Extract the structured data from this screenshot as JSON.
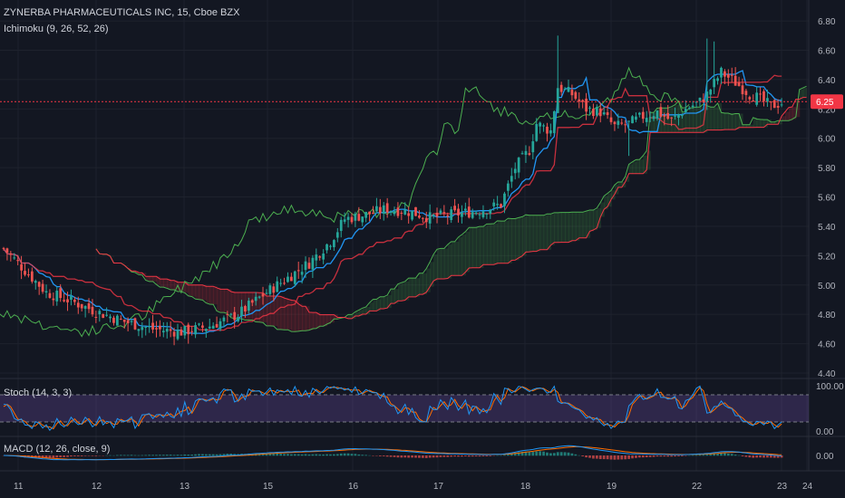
{
  "header": {
    "title": "ZYNERBA PHARMACEUTICALS INC, 15, Cboe BZX",
    "indicator": "Ichimoku (9, 26, 52, 26)"
  },
  "colors": {
    "background": "#131722",
    "grid": "#1e222d",
    "up": "#26a69a",
    "down": "#ef5350",
    "tenkan": "#2196f3",
    "kijun": "#f23645",
    "chikou": "#4caf50",
    "cloud_bull": "#4caf50",
    "cloud_bear": "#f23645",
    "stoch_k": "#2196f3",
    "stoch_d": "#ff6d00",
    "stoch_band": "#7e57c2",
    "macd_line": "#2196f3",
    "signal_line": "#ff6d00",
    "price_marker": "#f23645"
  },
  "price_axis": {
    "labels": [
      "6.80",
      "6.60",
      "6.40",
      "6.20",
      "6.00",
      "5.80",
      "5.60",
      "5.40",
      "5.20",
      "5.00",
      "4.80",
      "4.60",
      "4.40"
    ],
    "last_price": "6.25"
  },
  "time_axis": {
    "labels": [
      "11",
      "12",
      "13",
      "15",
      "16",
      "17",
      "18",
      "19",
      "22",
      "23",
      "24"
    ]
  },
  "stoch": {
    "label": "Stoch (14, 3, 3)",
    "axis": [
      "100.00",
      "0.00"
    ]
  },
  "macd": {
    "label": "MACD (12, 26, close, 9)",
    "axis": [
      "0.00"
    ]
  },
  "chart_data": {
    "type": "candlestick",
    "symbol": "ZYNERBA PHARMACEUTICALS INC",
    "interval": "15",
    "exchange": "Cboe BZX",
    "ylim": [
      4.4,
      6.85
    ],
    "last_price": 6.25,
    "x_labels": [
      "11",
      "12",
      "13",
      "15",
      "16",
      "17",
      "18",
      "19",
      "22",
      "23",
      "24"
    ],
    "close_path": [
      [
        0,
        5.25
      ],
      [
        6,
        5.1
      ],
      [
        12,
        4.95
      ],
      [
        18,
        4.9
      ],
      [
        26,
        4.82
      ],
      [
        34,
        4.75
      ],
      [
        42,
        4.7
      ],
      [
        50,
        4.68
      ],
      [
        58,
        4.72
      ],
      [
        66,
        4.8
      ],
      [
        74,
        4.95
      ],
      [
        80,
        5.05
      ],
      [
        86,
        5.15
      ],
      [
        92,
        5.3
      ],
      [
        96,
        5.45
      ],
      [
        102,
        5.48
      ],
      [
        108,
        5.52
      ],
      [
        114,
        5.5
      ],
      [
        120,
        5.46
      ],
      [
        126,
        5.48
      ],
      [
        132,
        5.5
      ],
      [
        136,
        5.52
      ],
      [
        140,
        5.55
      ],
      [
        144,
        5.8
      ],
      [
        148,
        5.92
      ],
      [
        150,
        6.1
      ],
      [
        154,
        6.05
      ],
      [
        156,
        6.35
      ],
      [
        160,
        6.3
      ],
      [
        164,
        6.2
      ],
      [
        168,
        6.18
      ],
      [
        172,
        6.08
      ],
      [
        176,
        6.1
      ],
      [
        180,
        6.15
      ],
      [
        184,
        6.18
      ],
      [
        188,
        6.12
      ],
      [
        192,
        6.2
      ],
      [
        196,
        6.25
      ],
      [
        198,
        6.3
      ],
      [
        202,
        6.45
      ],
      [
        206,
        6.38
      ],
      [
        210,
        6.3
      ],
      [
        212,
        6.28
      ],
      [
        216,
        6.22
      ],
      [
        220,
        6.25
      ]
    ],
    "candle_count": 220
  }
}
